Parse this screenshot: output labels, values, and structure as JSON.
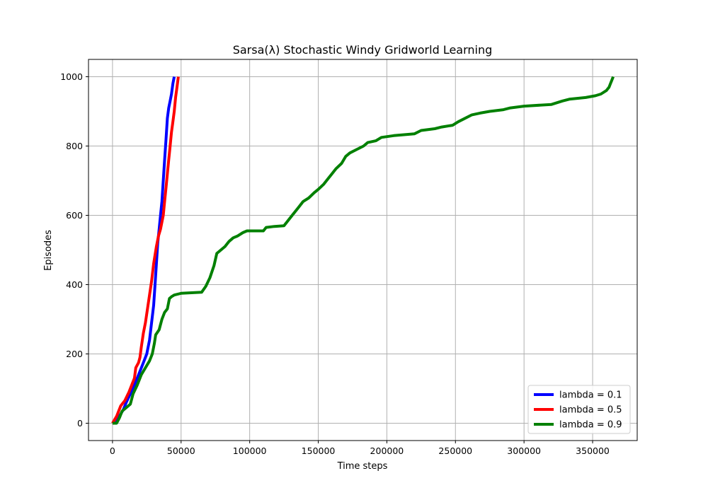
{
  "chart_data": {
    "type": "line",
    "title": "Sarsa(λ) Stochastic Windy Gridworld Learning",
    "xlabel": "Time steps",
    "ylabel": "Episodes",
    "xlim": [
      -17500,
      382500
    ],
    "ylim": [
      -50,
      1050
    ],
    "xticks": [
      0,
      50000,
      100000,
      150000,
      200000,
      250000,
      300000,
      350000
    ],
    "yticks": [
      0,
      200,
      400,
      600,
      800,
      1000
    ],
    "grid": true,
    "legend": "lower-right",
    "series": [
      {
        "name": "lambda = 0.1",
        "color": "#0000ff",
        "points": [
          [
            0,
            0
          ],
          [
            2500,
            5
          ],
          [
            5000,
            20
          ],
          [
            8000,
            40
          ],
          [
            10000,
            60
          ],
          [
            13000,
            85
          ],
          [
            15000,
            100
          ],
          [
            18000,
            130
          ],
          [
            20000,
            150
          ],
          [
            23000,
            180
          ],
          [
            25000,
            200
          ],
          [
            27000,
            240
          ],
          [
            28500,
            290
          ],
          [
            30000,
            340
          ],
          [
            31000,
            400
          ],
          [
            32000,
            460
          ],
          [
            33000,
            520
          ],
          [
            34000,
            560
          ],
          [
            35000,
            600
          ],
          [
            36000,
            640
          ],
          [
            37000,
            700
          ],
          [
            38000,
            760
          ],
          [
            39000,
            820
          ],
          [
            40000,
            880
          ],
          [
            41000,
            910
          ],
          [
            42000,
            930
          ],
          [
            43000,
            950
          ],
          [
            44000,
            980
          ],
          [
            45000,
            1000
          ]
        ]
      },
      {
        "name": "lambda = 0.5",
        "color": "#ff0000",
        "points": [
          [
            0,
            0
          ],
          [
            3000,
            20
          ],
          [
            6000,
            50
          ],
          [
            9000,
            65
          ],
          [
            12000,
            90
          ],
          [
            14000,
            110
          ],
          [
            16000,
            130
          ],
          [
            17000,
            160
          ],
          [
            19000,
            175
          ],
          [
            20000,
            190
          ],
          [
            21000,
            220
          ],
          [
            22500,
            260
          ],
          [
            24000,
            290
          ],
          [
            25500,
            330
          ],
          [
            27000,
            370
          ],
          [
            28500,
            410
          ],
          [
            30000,
            460
          ],
          [
            32000,
            510
          ],
          [
            33500,
            540
          ],
          [
            35000,
            560
          ],
          [
            37000,
            600
          ],
          [
            38000,
            640
          ],
          [
            39000,
            680
          ],
          [
            40000,
            720
          ],
          [
            41000,
            760
          ],
          [
            42000,
            800
          ],
          [
            43000,
            840
          ],
          [
            44000,
            870
          ],
          [
            45000,
            900
          ],
          [
            46000,
            940
          ],
          [
            47000,
            970
          ],
          [
            48000,
            1000
          ]
        ]
      },
      {
        "name": "lambda = 0.9",
        "color": "#008000",
        "points": [
          [
            0,
            0
          ],
          [
            3000,
            0
          ],
          [
            5000,
            15
          ],
          [
            7000,
            35
          ],
          [
            10000,
            45
          ],
          [
            13000,
            55
          ],
          [
            15000,
            85
          ],
          [
            18000,
            110
          ],
          [
            21000,
            140
          ],
          [
            24000,
            160
          ],
          [
            27000,
            180
          ],
          [
            29000,
            200
          ],
          [
            30500,
            230
          ],
          [
            31500,
            255
          ],
          [
            34000,
            270
          ],
          [
            36000,
            300
          ],
          [
            38000,
            320
          ],
          [
            40000,
            330
          ],
          [
            41500,
            360
          ],
          [
            43000,
            365
          ],
          [
            45000,
            370
          ],
          [
            50000,
            375
          ],
          [
            65000,
            378
          ],
          [
            68000,
            395
          ],
          [
            71000,
            420
          ],
          [
            74000,
            455
          ],
          [
            76000,
            490
          ],
          [
            79000,
            500
          ],
          [
            82000,
            510
          ],
          [
            85000,
            525
          ],
          [
            88000,
            535
          ],
          [
            91000,
            540
          ],
          [
            95000,
            550
          ],
          [
            98000,
            555
          ],
          [
            110000,
            555
          ],
          [
            112000,
            565
          ],
          [
            118000,
            568
          ],
          [
            125000,
            570
          ],
          [
            128000,
            585
          ],
          [
            131000,
            600
          ],
          [
            135000,
            620
          ],
          [
            139000,
            640
          ],
          [
            143000,
            650
          ],
          [
            147000,
            665
          ],
          [
            150000,
            675
          ],
          [
            154000,
            690
          ],
          [
            157000,
            705
          ],
          [
            160000,
            720
          ],
          [
            163000,
            735
          ],
          [
            167000,
            750
          ],
          [
            170000,
            770
          ],
          [
            173000,
            780
          ],
          [
            178000,
            790
          ],
          [
            183000,
            800
          ],
          [
            186000,
            810
          ],
          [
            192000,
            815
          ],
          [
            196000,
            825
          ],
          [
            205000,
            830
          ],
          [
            220000,
            835
          ],
          [
            225000,
            845
          ],
          [
            235000,
            850
          ],
          [
            240000,
            855
          ],
          [
            248000,
            860
          ],
          [
            252000,
            870
          ],
          [
            257000,
            880
          ],
          [
            262000,
            890
          ],
          [
            268000,
            895
          ],
          [
            275000,
            900
          ],
          [
            285000,
            905
          ],
          [
            290000,
            910
          ],
          [
            300000,
            915
          ],
          [
            320000,
            920
          ],
          [
            328000,
            930
          ],
          [
            333000,
            935
          ],
          [
            345000,
            940
          ],
          [
            352000,
            945
          ],
          [
            356000,
            950
          ],
          [
            360000,
            960
          ],
          [
            362000,
            970
          ],
          [
            363000,
            980
          ],
          [
            364000,
            990
          ],
          [
            365000,
            1000
          ]
        ]
      }
    ]
  }
}
